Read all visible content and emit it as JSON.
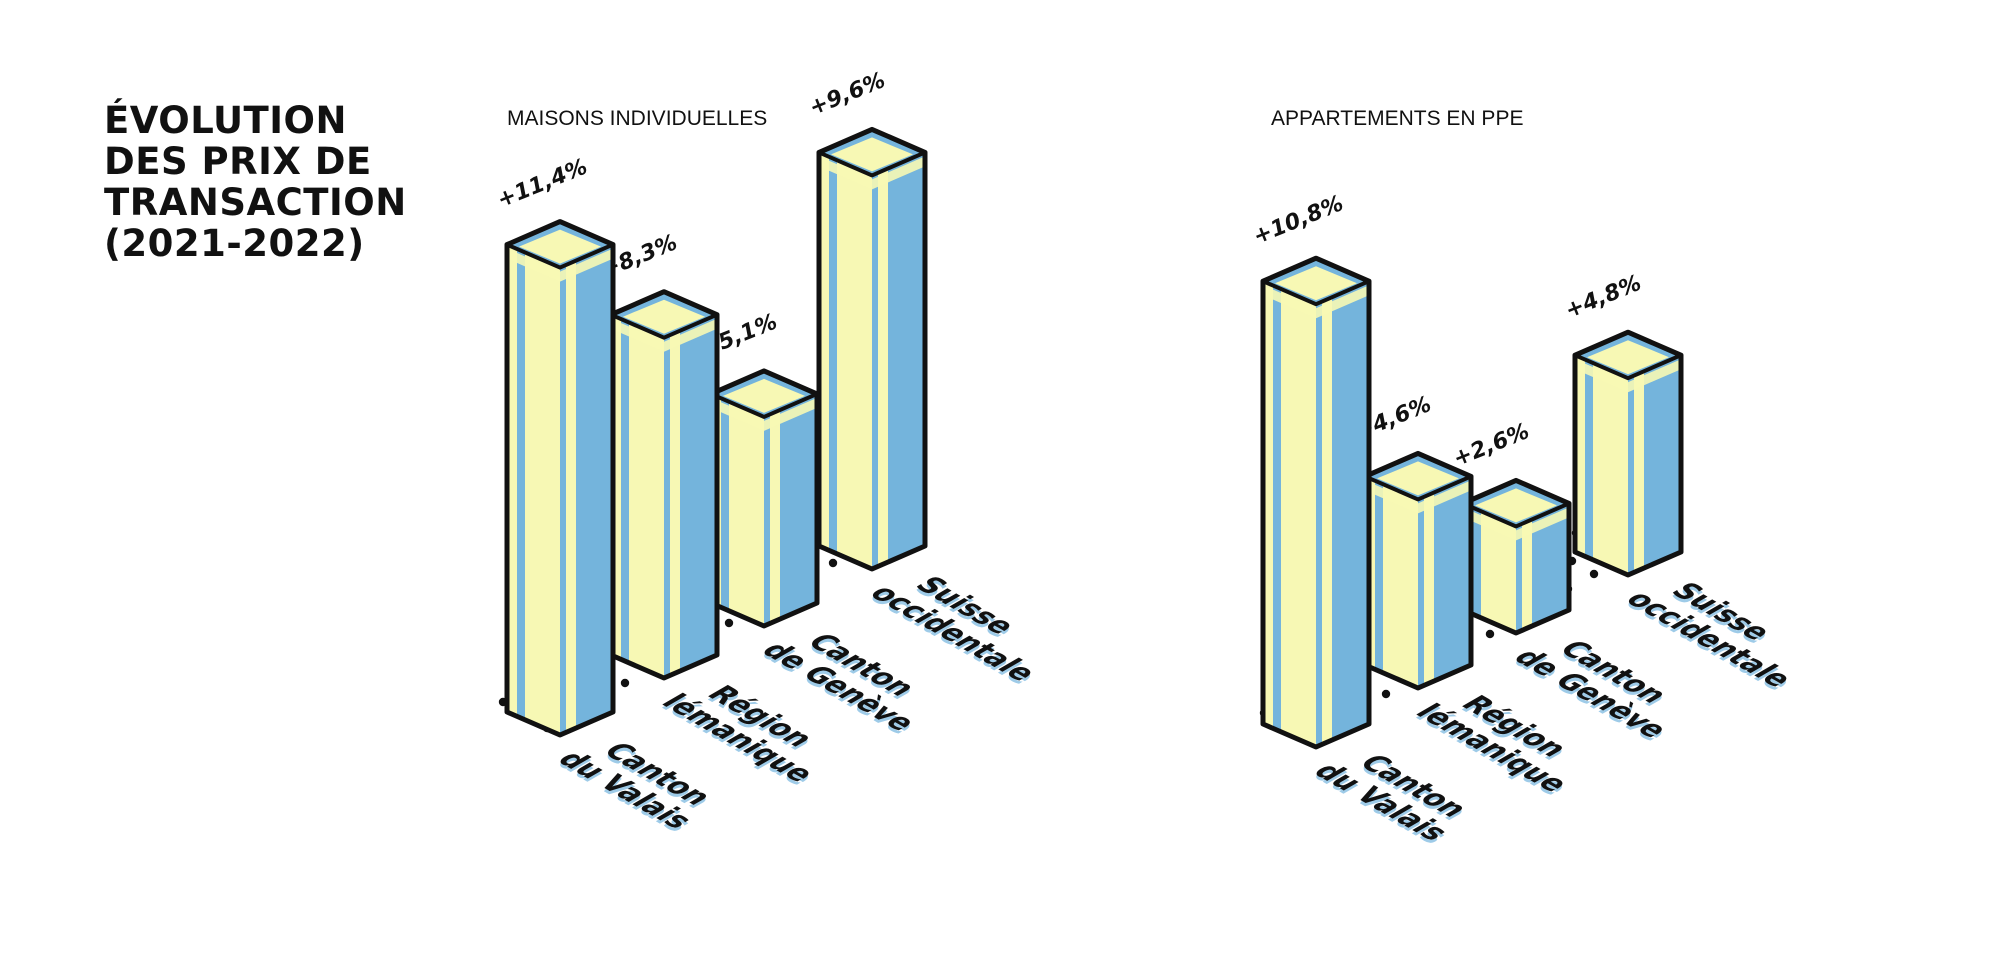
{
  "title_lines": [
    "ÉVOLUTION",
    "DES PRIX DE",
    "TRANSACTION",
    "(2021-2022)"
  ],
  "colors": {
    "yellow": "#f7f8b4",
    "blue": "#74b4dc",
    "outline": "#111111",
    "label_shadow": "#9ecbe8"
  },
  "chart_data": [
    {
      "type": "bar",
      "title": "MAISONS INDIVIDUELLES",
      "categories": [
        [
          "Canton",
          "du Valais"
        ],
        [
          "Région",
          "lémanique"
        ],
        [
          "Canton",
          "de Genève"
        ],
        [
          "Suisse",
          "occidentale"
        ]
      ],
      "values": [
        11.4,
        8.3,
        5.1,
        9.6
      ],
      "value_labels": [
        "+11,4%",
        "+8,3%",
        "+5,1%",
        "+9,6%"
      ],
      "unit": "%"
    },
    {
      "type": "bar",
      "title": "APPARTEMENTS EN PPE",
      "categories": [
        [
          "Canton",
          "du Valais"
        ],
        [
          "Région",
          "lémanique"
        ],
        [
          "Canton",
          "de Genève"
        ],
        [
          "Suisse",
          "occidentale"
        ]
      ],
      "values": [
        10.8,
        4.6,
        2.6,
        4.8
      ],
      "value_labels": [
        "+10,8%",
        "+4,6%",
        "+2,6%",
        "+4,8%"
      ],
      "unit": "%"
    }
  ]
}
